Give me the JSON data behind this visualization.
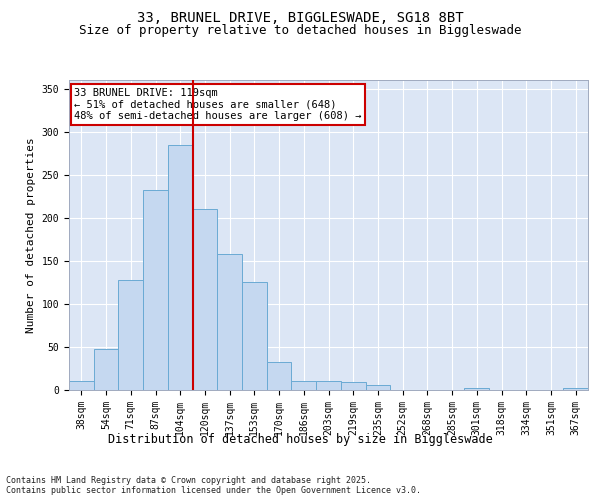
{
  "title1": "33, BRUNEL DRIVE, BIGGLESWADE, SG18 8BT",
  "title2": "Size of property relative to detached houses in Biggleswade",
  "xlabel": "Distribution of detached houses by size in Biggleswade",
  "ylabel": "Number of detached properties",
  "categories": [
    "38sqm",
    "54sqm",
    "71sqm",
    "87sqm",
    "104sqm",
    "120sqm",
    "137sqm",
    "153sqm",
    "170sqm",
    "186sqm",
    "203sqm",
    "219sqm",
    "235sqm",
    "252sqm",
    "268sqm",
    "285sqm",
    "301sqm",
    "318sqm",
    "334sqm",
    "351sqm",
    "367sqm"
  ],
  "values": [
    11,
    48,
    128,
    232,
    285,
    210,
    158,
    125,
    33,
    11,
    11,
    9,
    6,
    0,
    0,
    0,
    2,
    0,
    0,
    0,
    2
  ],
  "bar_color": "#c5d8f0",
  "bar_edge_color": "#6aaad4",
  "background_color": "#dce6f5",
  "grid_color": "#ffffff",
  "vline_color": "#cc0000",
  "annotation_text": "33 BRUNEL DRIVE: 119sqm\n← 51% of detached houses are smaller (648)\n48% of semi-detached houses are larger (608) →",
  "annotation_box_color": "#ffffff",
  "annotation_box_edge": "#cc0000",
  "ylim": [
    0,
    360
  ],
  "yticks": [
    0,
    50,
    100,
    150,
    200,
    250,
    300,
    350
  ],
  "footnote": "Contains HM Land Registry data © Crown copyright and database right 2025.\nContains public sector information licensed under the Open Government Licence v3.0.",
  "title1_fontsize": 10,
  "title2_fontsize": 9,
  "xlabel_fontsize": 8.5,
  "ylabel_fontsize": 8,
  "tick_fontsize": 7,
  "annot_fontsize": 7.5,
  "footnote_fontsize": 6
}
